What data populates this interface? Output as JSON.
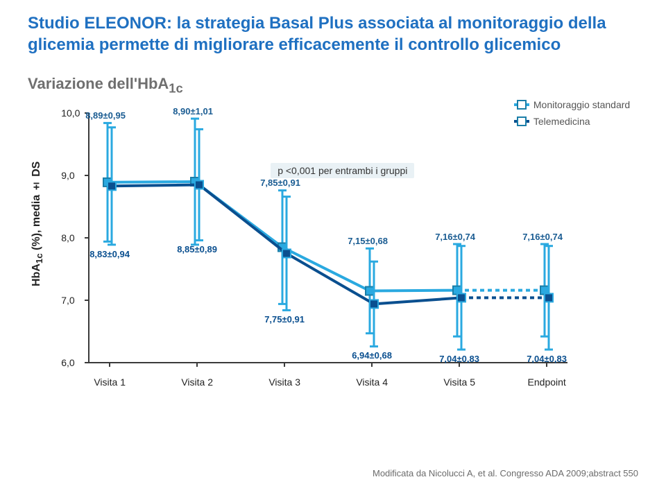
{
  "title": "Studio ELEONOR: la strategia Basal Plus associata al monitoraggio della glicemia permette di migliorare efficacemente il controllo glicemico",
  "subtitle": "Variazione dell'HbA",
  "subtitle_sub": "1c",
  "yaxis": "HbA   (%), media ± DS",
  "yaxis_sub": "1c",
  "chart": {
    "type": "line",
    "x_categories": [
      "Visita 1",
      "Visita 2",
      "Visita 3",
      "Visita 4",
      "Visita 5",
      "Endpoint"
    ],
    "ylim": [
      6.0,
      10.0
    ],
    "ytick_labels": [
      "6,0",
      "7,0",
      "8,0",
      "9,0",
      "10,0"
    ],
    "ytick_values": [
      6,
      7,
      8,
      9,
      10
    ],
    "series": [
      {
        "name": "Monitoraggio standard",
        "color": "#2aa9e0",
        "marker_border": "#1a7ea8",
        "values": [
          8.89,
          8.9,
          7.85,
          7.15,
          7.16,
          7.16
        ],
        "sd": [
          0.95,
          1.01,
          0.91,
          0.68,
          0.74,
          0.74
        ],
        "labels": [
          "8,89±0,95",
          "8,90±1,01",
          "7,85±0,91",
          "7,15±0,68",
          "7,16±0,74",
          "7,16±0,74"
        ],
        "label_color": "#1a5c92",
        "label_offset": "above"
      },
      {
        "name": "Telemedicina",
        "color": "#0a4f8f",
        "marker_border": "#2aa9e0",
        "values": [
          8.83,
          8.85,
          7.75,
          6.94,
          7.04,
          7.04
        ],
        "sd": [
          0.94,
          0.89,
          0.91,
          0.68,
          0.83,
          0.83
        ],
        "labels": [
          "8,83±0,94",
          "8,85±0,89",
          "7,75±0,91",
          "6,94±0,68",
          "7,04±0,83",
          "7,04±0,83"
        ],
        "label_color": "#0a4f8f",
        "label_offset": "below"
      }
    ],
    "p_annotation": "p <0,001 per entrambi i gruppi",
    "dashed_last_segment": true,
    "error_bar_color": "#2aa9e0",
    "axis_color": "#3a3a3a",
    "background": "#ffffff"
  },
  "legend": {
    "items": [
      "Monitoraggio standard",
      "Telemedicina"
    ]
  },
  "citation": "Modificata da Nicolucci A, et al. Congresso ADA 2009;abstract 550"
}
